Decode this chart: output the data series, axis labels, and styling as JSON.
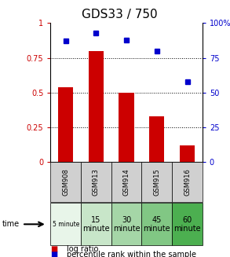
{
  "title": "GDS33 / 750",
  "categories": [
    "GSM908",
    "GSM913",
    "GSM914",
    "GSM915",
    "GSM916"
  ],
  "log_ratio": [
    0.54,
    0.8,
    0.5,
    0.33,
    0.12
  ],
  "percentile_rank": [
    87,
    93,
    88,
    80,
    58
  ],
  "bar_color": "#cc0000",
  "point_color": "#0000cc",
  "ylim_left": [
    0,
    1.0
  ],
  "ylim_right": [
    0,
    100
  ],
  "yticks_left": [
    0,
    0.25,
    0.5,
    0.75,
    1.0
  ],
  "ytick_labels_left": [
    "0",
    "0.25",
    "0.5",
    "0.75",
    "1"
  ],
  "yticks_right": [
    0,
    25,
    50,
    75,
    100
  ],
  "ytick_labels_right": [
    "0",
    "25",
    "50",
    "75",
    "100%"
  ],
  "time_labels": [
    "5 minute",
    "15\nminute",
    "30\nminute",
    "45\nminute",
    "60\nminute"
  ],
  "time_colors": [
    "#e8f5e9",
    "#c8e6c9",
    "#a5d6a7",
    "#81c784",
    "#4caf50"
  ],
  "legend_bar_label": "log ratio",
  "legend_point_label": "percentile rank within the sample",
  "bar_width": 0.5,
  "time_row_label": "time",
  "gsm_bg_color": "#d0d0d0",
  "title_fontsize": 11,
  "axis_fontsize": 7,
  "gsm_fontsize": 6,
  "time_fontsize_small": 5.5,
  "time_fontsize": 7,
  "legend_fontsize": 7
}
